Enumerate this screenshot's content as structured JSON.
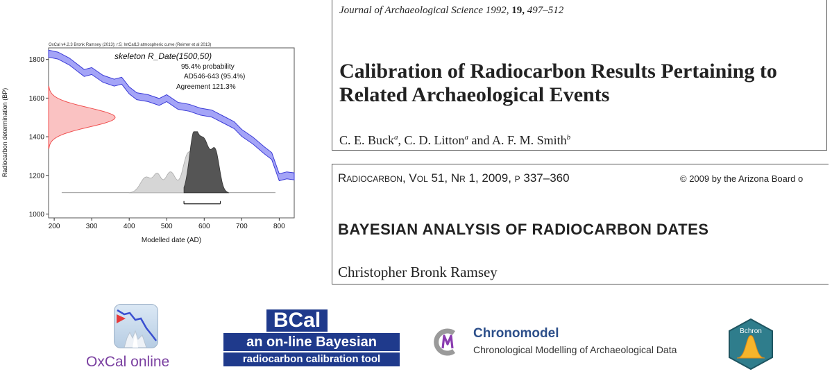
{
  "oxcal_plot": {
    "header": "OxCal v4.2.3 Bronk Ramsey (2013); r:5; IntCal13 atmospheric curve (Reimer et al 2013)",
    "sample_name": "skeleton R_Date(1500,50)",
    "probability_label": "95.4% probability",
    "range_label": "AD546-643 (95.4%)",
    "agreement_label": "Agreement 121.3%",
    "xlabel": "Modelled date (AD)",
    "ylabel": "Radiocarbon determination (BP)",
    "x_ticks": [
      "200",
      "300",
      "400",
      "500",
      "600",
      "700",
      "800"
    ],
    "y_ticks": [
      "1800",
      "1600",
      "1400",
      "1200",
      "1000"
    ],
    "colors": {
      "curve": "#5a5af0",
      "prior": "#f05050",
      "posterior": "#555555"
    }
  },
  "chart_data": {
    "type": "line",
    "title": "skeleton R_Date(1500,50)",
    "xlabel": "Modelled date (AD)",
    "ylabel": "Radiocarbon determination (BP)",
    "xlim": [
      185,
      840
    ],
    "ylim": [
      980,
      1860
    ],
    "series": [
      {
        "name": "IntCal13 atmospheric curve",
        "x": [
          185,
          210,
          240,
          260,
          280,
          300,
          330,
          360,
          380,
          400,
          420,
          450,
          480,
          500,
          530,
          560,
          590,
          620,
          650,
          680,
          700,
          730,
          760,
          780,
          800,
          820,
          840
        ],
        "y": [
          1830,
          1820,
          1790,
          1760,
          1730,
          1740,
          1700,
          1680,
          1690,
          1640,
          1610,
          1600,
          1580,
          1600,
          1560,
          1550,
          1530,
          1520,
          1490,
          1460,
          1420,
          1380,
          1330,
          1300,
          1190,
          1200,
          1195
        ]
      }
    ],
    "radiocarbon_date": {
      "bp": 1500,
      "error": 50
    },
    "range_95": [
      546,
      643
    ]
  },
  "paper1": {
    "journal": "Journal of Archaeological Science 1992,",
    "volume": "19,",
    "pages": "497–512",
    "title_line1": "Calibration of Radiocarbon Results Pertaining to",
    "title_line2": "Related Archaeological Events",
    "author1": "C. E. Buck",
    "sup1": "a",
    "author2": ", C. D. Litton",
    "sup2": "a",
    "author3": " and A. F. M. Smith",
    "sup3": "b"
  },
  "paper2": {
    "journal": "Radiocarbon, Vol 51, Nr 1, 2009, p 337–360",
    "copyright": "© 2009 by the Arizona Board o",
    "title": "BAYESIAN ANALYSIS OF RADIOCARBON DATES",
    "author": "Christopher Bronk Ramsey"
  },
  "logos": {
    "oxcal": "OxCal online",
    "bcal_title": "BCal",
    "bcal_line2": "an on-line Bayesian",
    "bcal_line3": "radiocarbon calibration tool",
    "chronomodel_name": "Chronomodel",
    "chronomodel_tagline": "Chronological Modelling of Archaeological Data",
    "bchron": "Bchron"
  }
}
